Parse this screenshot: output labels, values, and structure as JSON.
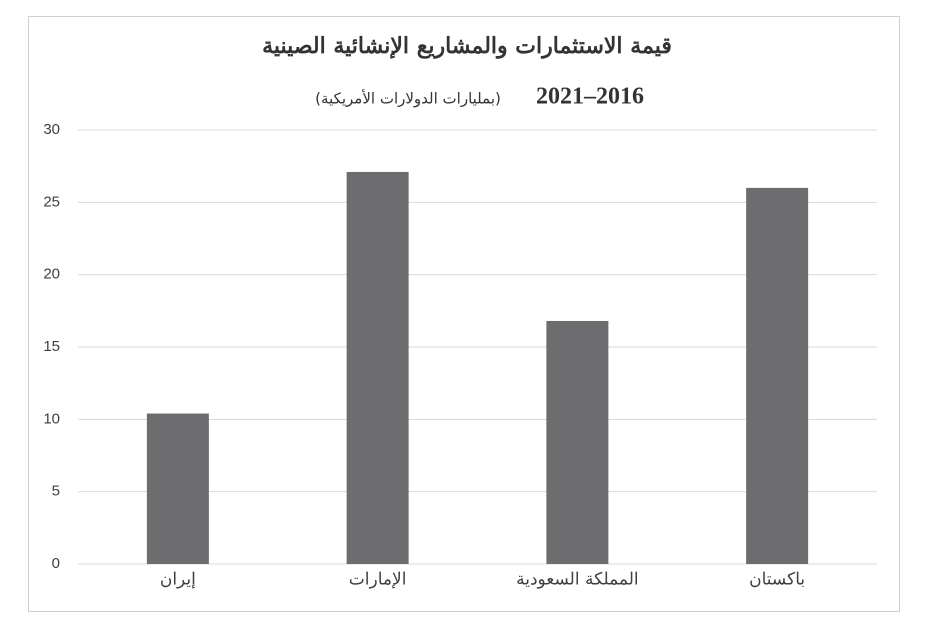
{
  "chart_data": {
    "type": "bar",
    "title": "قيمة الاستثمارات والمشاريع الإنشائية الصينية",
    "subtitle_years": "2021–2016",
    "subtitle_units": "(بمليارات الدولارات الأمريكية)",
    "categories": [
      "إيران",
      "الإمارات",
      "المملكة السعودية",
      "باكستان"
    ],
    "values": [
      10.4,
      27.1,
      16.8,
      26.0
    ],
    "color": "#6d6d70",
    "ylim": [
      0,
      30
    ],
    "yticks": [
      0,
      5,
      10,
      15,
      20,
      25,
      30
    ],
    "grid": true
  }
}
